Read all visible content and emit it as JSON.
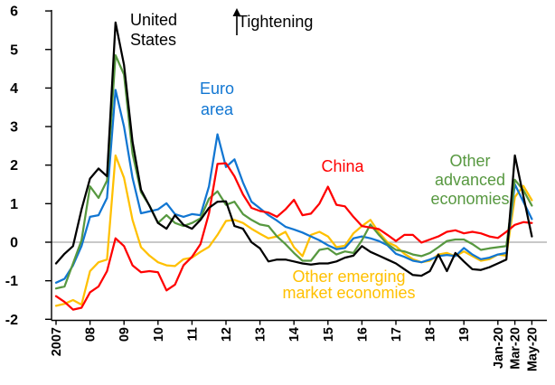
{
  "labels": {
    "united_states": "United\nStates",
    "tightening": "Tightening",
    "euro_area": "Euro\narea",
    "china": "China",
    "other_advanced": "Other\nadvanced\neconomies",
    "other_emerging": "Other emerging\nmarket economies"
  },
  "colors": {
    "united_states": "#000000",
    "euro_area": "#1176d2",
    "china": "#ff0000",
    "other_advanced": "#579840",
    "other_emerging": "#ffc000",
    "axis": "#000000",
    "zero_line": "#a6a6a6"
  },
  "chart_data": {
    "type": "line",
    "title": "",
    "ylim": [
      -2,
      6
    ],
    "y_ticks": [
      6,
      5,
      4,
      3,
      2,
      1,
      0,
      -1,
      -2
    ],
    "grid": "zero-line-only",
    "x_points": 57,
    "x_ticks": [
      {
        "label": "2007",
        "i": 0
      },
      {
        "label": "08",
        "i": 4
      },
      {
        "label": "09",
        "i": 8
      },
      {
        "label": "10",
        "i": 12
      },
      {
        "label": "11",
        "i": 16
      },
      {
        "label": "12",
        "i": 20
      },
      {
        "label": "13",
        "i": 24
      },
      {
        "label": "14",
        "i": 28
      },
      {
        "label": "15",
        "i": 32
      },
      {
        "label": "16",
        "i": 36
      },
      {
        "label": "17",
        "i": 40
      },
      {
        "label": "18",
        "i": 44
      },
      {
        "label": "19",
        "i": 48
      },
      {
        "label": "Jan-20",
        "i": 52
      },
      {
        "label": "Mar-20",
        "i": 54
      },
      {
        "label": "May-20",
        "i": 56
      }
    ],
    "annotations": [
      "United States",
      "Tightening (up arrow)",
      "Euro area",
      "China",
      "Other advanced economies",
      "Other emerging market economies"
    ],
    "series": [
      {
        "name": "Other emerging market economies",
        "color": "#ffc000",
        "z": 1,
        "values": [
          -1.65,
          -1.6,
          -1.5,
          -1.62,
          -0.75,
          -0.52,
          -0.45,
          2.25,
          1.67,
          0.58,
          -0.13,
          -0.35,
          -0.52,
          -0.6,
          -0.62,
          -0.44,
          -0.4,
          -0.25,
          -0.12,
          0.19,
          0.55,
          0.58,
          0.5,
          0.35,
          0.22,
          0.1,
          0.15,
          0.27,
          -0.13,
          -0.36,
          0.19,
          0.27,
          0.15,
          -0.13,
          -0.09,
          0.23,
          0.42,
          0.58,
          0.25,
          0.0,
          -0.1,
          -0.3,
          -0.44,
          -0.52,
          -0.48,
          -0.32,
          -0.28,
          -0.36,
          -0.24,
          -0.36,
          -0.48,
          -0.44,
          -0.32,
          -0.35,
          1.17,
          1.46,
          1.09
        ]
      },
      {
        "name": "Euro area",
        "color": "#1176d2",
        "z": 2,
        "values": [
          -1.05,
          -0.95,
          -0.6,
          -0.1,
          0.66,
          0.7,
          1.15,
          3.95,
          3.0,
          1.67,
          0.75,
          0.8,
          0.85,
          1.01,
          0.73,
          0.66,
          0.73,
          0.7,
          1.45,
          2.8,
          1.95,
          2.15,
          1.55,
          1.05,
          0.88,
          0.7,
          0.56,
          0.4,
          0.33,
          0.25,
          0.15,
          0.05,
          -0.08,
          -0.18,
          -0.15,
          0.1,
          0.15,
          0.1,
          0.03,
          -0.08,
          -0.3,
          -0.38,
          -0.48,
          -0.52,
          -0.45,
          -0.36,
          -0.33,
          -0.36,
          -0.15,
          -0.32,
          -0.44,
          -0.4,
          -0.32,
          -0.28,
          1.5,
          1.05,
          0.6
        ]
      },
      {
        "name": "Other advanced economies",
        "color": "#579840",
        "z": 3,
        "values": [
          -1.2,
          -1.15,
          -0.55,
          0.05,
          1.45,
          1.15,
          1.6,
          4.85,
          4.35,
          2.3,
          1.3,
          0.95,
          0.5,
          0.7,
          0.5,
          0.42,
          0.5,
          0.62,
          1.13,
          1.32,
          0.97,
          1.05,
          0.73,
          0.58,
          0.46,
          0.42,
          0.15,
          -0.05,
          -0.28,
          -0.48,
          -0.48,
          -0.2,
          -0.16,
          -0.32,
          -0.24,
          -0.28,
          0.05,
          0.46,
          0.19,
          -0.05,
          -0.2,
          -0.24,
          -0.32,
          -0.36,
          -0.28,
          -0.13,
          0.03,
          0.07,
          0.07,
          -0.05,
          -0.2,
          -0.16,
          -0.13,
          -0.1,
          1.62,
          1.35,
          0.95
        ]
      },
      {
        "name": "China",
        "color": "#ff0000",
        "z": 4,
        "values": [
          -1.4,
          -1.55,
          -1.75,
          -1.7,
          -1.3,
          -1.15,
          -0.75,
          0.1,
          -0.1,
          -0.6,
          -0.78,
          -0.75,
          -0.78,
          -1.25,
          -1.1,
          -0.6,
          -0.38,
          -0.05,
          0.75,
          2.03,
          2.05,
          1.71,
          1.24,
          0.89,
          0.81,
          0.77,
          0.66,
          0.85,
          1.1,
          0.7,
          0.74,
          1.0,
          1.44,
          0.97,
          0.93,
          0.66,
          0.42,
          0.38,
          0.34,
          0.19,
          0.03,
          0.19,
          0.19,
          -0.01,
          0.07,
          0.15,
          0.27,
          0.31,
          0.23,
          0.27,
          0.23,
          0.15,
          0.11,
          0.27,
          0.45,
          0.52,
          0.5
        ]
      },
      {
        "name": "United States",
        "color": "#000000",
        "z": 5,
        "values": [
          -0.55,
          -0.3,
          -0.1,
          0.85,
          1.65,
          1.91,
          1.71,
          5.7,
          4.6,
          2.61,
          1.36,
          0.94,
          0.5,
          0.35,
          0.7,
          0.45,
          0.35,
          0.58,
          0.89,
          1.05,
          1.06,
          0.42,
          0.35,
          0.0,
          -0.16,
          -0.5,
          -0.45,
          -0.45,
          -0.5,
          -0.55,
          -0.58,
          -0.55,
          -0.55,
          -0.5,
          -0.4,
          -0.35,
          -0.1,
          -0.25,
          -0.35,
          -0.45,
          -0.55,
          -0.7,
          -0.85,
          -0.87,
          -0.75,
          -0.32,
          -0.75,
          -0.28,
          -0.5,
          -0.7,
          -0.72,
          -0.65,
          -0.55,
          -0.45,
          2.25,
          1.2,
          0.15
        ]
      }
    ]
  }
}
